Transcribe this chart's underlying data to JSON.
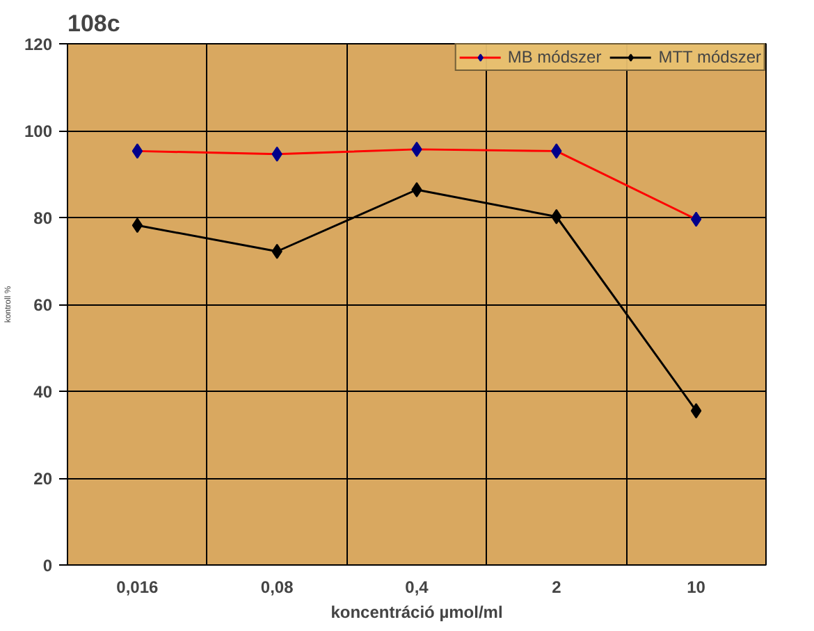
{
  "chart_data": {
    "type": "line",
    "title": "108c",
    "xlabel": "koncentráció µmol/ml",
    "ylabel": "kontroll %",
    "categories": [
      "0,016",
      "0,08",
      "0,4",
      "2",
      "10"
    ],
    "series": [
      {
        "name": "MB módszer",
        "color": "#ff0000",
        "colors": [
          "#00008b",
          "#00008b",
          "#00008b",
          "#00008b",
          "#00008b"
        ],
        "values": [
          95.3,
          94.6,
          95.7,
          95.3,
          79.6
        ]
      },
      {
        "name": "MTT módszer",
        "color": "#000000",
        "colors": [
          "#000000",
          "#000000",
          "#000000",
          "#000000",
          "#000000"
        ],
        "values": [
          78.2,
          72.2,
          86.4,
          80.2,
          35.5
        ]
      }
    ],
    "ylim": [
      0,
      120
    ],
    "yticks": [
      0,
      20,
      40,
      60,
      80,
      100,
      120
    ],
    "grid": true,
    "legend": "top right",
    "marker": "diamond",
    "line_style": "solid"
  }
}
